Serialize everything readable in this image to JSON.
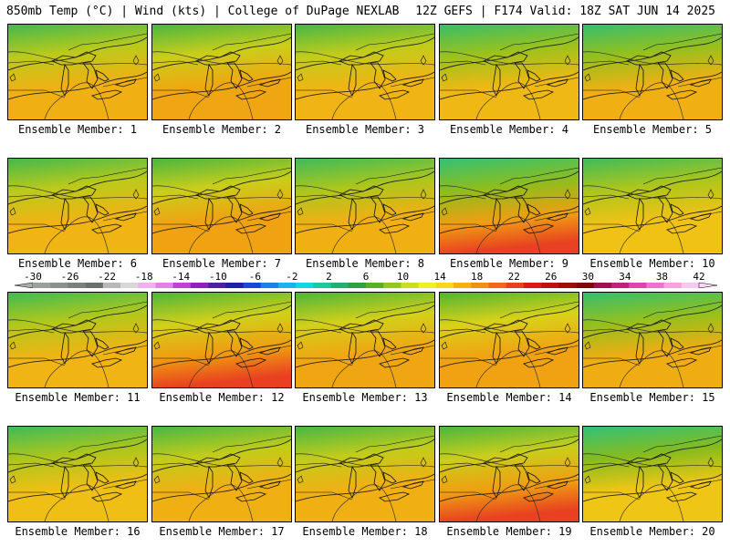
{
  "header": {
    "left": "850mb Temp (°C) | Wind (kts) | College of DuPage NEXLAB",
    "right": "12Z GEFS | F174 Valid: 18Z SAT JUN 14 2025"
  },
  "members": [
    {
      "label": "Ensemble Member: 1",
      "warmth": 0.55,
      "cool": 0.35
    },
    {
      "label": "Ensemble Member: 2",
      "warmth": 0.7,
      "cool": 0.25
    },
    {
      "label": "Ensemble Member: 3",
      "warmth": 0.5,
      "cool": 0.3
    },
    {
      "label": "Ensemble Member: 4",
      "warmth": 0.45,
      "cool": 0.55
    },
    {
      "label": "Ensemble Member: 5",
      "warmth": 0.55,
      "cool": 0.6
    },
    {
      "label": "Ensemble Member: 6",
      "warmth": 0.5,
      "cool": 0.35
    },
    {
      "label": "Ensemble Member: 7",
      "warmth": 0.75,
      "cool": 0.25
    },
    {
      "label": "Ensemble Member: 8",
      "warmth": 0.55,
      "cool": 0.45
    },
    {
      "label": "Ensemble Member: 9",
      "warmth": 0.8,
      "cool": 0.65
    },
    {
      "label": "Ensemble Member: 10",
      "warmth": 0.3,
      "cool": 0.45
    },
    {
      "label": "Ensemble Member: 11",
      "warmth": 0.5,
      "cool": 0.4
    },
    {
      "label": "Ensemble Member: 12",
      "warmth": 0.85,
      "cool": 0.2
    },
    {
      "label": "Ensemble Member: 13",
      "warmth": 0.7,
      "cool": 0.2
    },
    {
      "label": "Ensemble Member: 14",
      "warmth": 0.75,
      "cool": 0.15
    },
    {
      "label": "Ensemble Member: 15",
      "warmth": 0.6,
      "cool": 0.6
    },
    {
      "label": "Ensemble Member: 16",
      "warmth": 0.35,
      "cool": 0.45
    },
    {
      "label": "Ensemble Member: 17",
      "warmth": 0.55,
      "cool": 0.3
    },
    {
      "label": "Ensemble Member: 18",
      "warmth": 0.55,
      "cool": 0.3
    },
    {
      "label": "Ensemble Member: 19",
      "warmth": 0.8,
      "cool": 0.25
    },
    {
      "label": "Ensemble Member: 20",
      "warmth": 0.25,
      "cool": 0.7
    }
  ],
  "colorbar": {
    "ticks": [
      "-30",
      "-26",
      "-22",
      "-18",
      "-14",
      "-10",
      "-6",
      "-2",
      "2",
      "6",
      "10",
      "14",
      "18",
      "22",
      "26",
      "30",
      "34",
      "38",
      "42"
    ],
    "colors": [
      "#9aa19a",
      "#8b918b",
      "#7a807a",
      "#6b716b",
      "#b8b8b8",
      "#d8d8d8",
      "#f0b0f0",
      "#e080e8",
      "#c040d8",
      "#9020c0",
      "#5020a0",
      "#2020a8",
      "#1848d8",
      "#1c80e8",
      "#18b4f0",
      "#10d8e0",
      "#18c8a0",
      "#20b070",
      "#30a040",
      "#58b020",
      "#90c820",
      "#c8e020",
      "#f0f020",
      "#f8d818",
      "#f8b010",
      "#f09010",
      "#f06818",
      "#e84020",
      "#e01818",
      "#c01010",
      "#a00c0c",
      "#800808",
      "#a01050",
      "#c02080",
      "#e040b0",
      "#f070d0",
      "#f8a0e0",
      "#f8c8f0"
    ]
  },
  "palette": {
    "cold": "#20c8a0",
    "mid": "#58b020",
    "warm": "#f0d818",
    "hot": "#f09010",
    "hottest": "#e84020"
  }
}
